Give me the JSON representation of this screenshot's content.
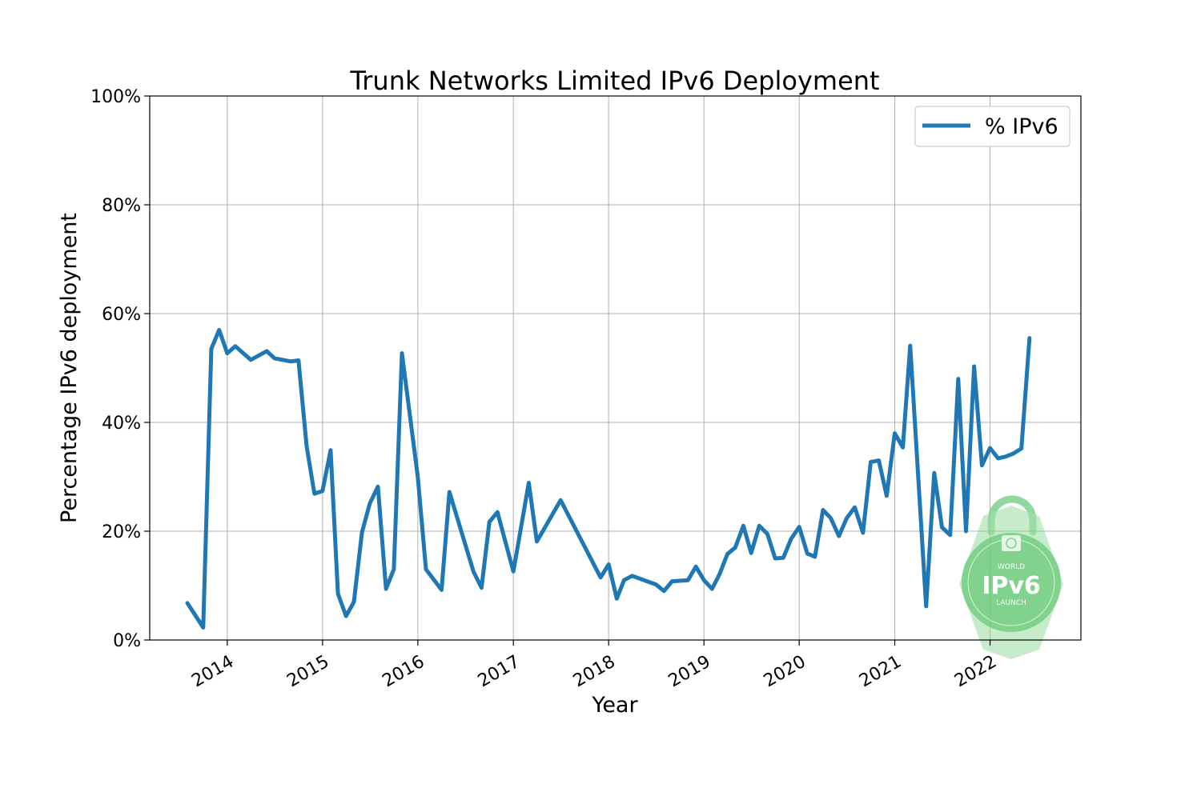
{
  "chart_data": {
    "type": "line",
    "title": "Trunk Networks Limited IPv6 Deployment",
    "xlabel": "Year",
    "ylabel": "Percentage IPv6 deployment",
    "x_ticks": [
      "2014",
      "2015",
      "2016",
      "2017",
      "2018",
      "2019",
      "2020",
      "2021",
      "2022"
    ],
    "y_ticks": [
      "0%",
      "20%",
      "40%",
      "60%",
      "80%",
      "100%"
    ],
    "xlim": [
      "2013-03-10",
      "2022-12-15"
    ],
    "ylim": [
      0,
      100
    ],
    "grid": true,
    "legend_position": "top-right",
    "series": [
      {
        "name": "% IPv6",
        "color": "#1f77b4",
        "points": [
          [
            "2013-08-01",
            6.8
          ],
          [
            "2013-10-01",
            2.3
          ],
          [
            "2013-11-01",
            53.5
          ],
          [
            "2013-12-01",
            57.0
          ],
          [
            "2014-01-01",
            52.7
          ],
          [
            "2014-02-01",
            54.0
          ],
          [
            "2014-04-01",
            51.5
          ],
          [
            "2014-06-01",
            53.1
          ],
          [
            "2014-07-01",
            51.8
          ],
          [
            "2014-09-01",
            51.2
          ],
          [
            "2014-10-01",
            51.4
          ],
          [
            "2014-11-01",
            35.6
          ],
          [
            "2014-12-01",
            26.9
          ],
          [
            "2015-01-01",
            27.4
          ],
          [
            "2015-02-01",
            34.9
          ],
          [
            "2015-03-01",
            8.5
          ],
          [
            "2015-04-01",
            4.4
          ],
          [
            "2015-05-01",
            7.0
          ],
          [
            "2015-06-01",
            19.8
          ],
          [
            "2015-07-01",
            25.1
          ],
          [
            "2015-08-01",
            28.2
          ],
          [
            "2015-09-01",
            9.4
          ],
          [
            "2015-10-01",
            13.0
          ],
          [
            "2015-11-01",
            52.7
          ],
          [
            "2016-01-01",
            30.0
          ],
          [
            "2016-02-01",
            13.0
          ],
          [
            "2016-04-01",
            9.2
          ],
          [
            "2016-05-01",
            27.2
          ],
          [
            "2016-08-01",
            12.6
          ],
          [
            "2016-09-01",
            9.6
          ],
          [
            "2016-10-01",
            21.7
          ],
          [
            "2016-11-01",
            23.5
          ],
          [
            "2017-01-01",
            12.6
          ],
          [
            "2017-03-01",
            28.9
          ],
          [
            "2017-04-01",
            18.1
          ],
          [
            "2017-07-01",
            25.7
          ],
          [
            "2017-12-01",
            11.5
          ],
          [
            "2018-01-01",
            13.9
          ],
          [
            "2018-02-01",
            7.6
          ],
          [
            "2018-03-01",
            11.0
          ],
          [
            "2018-04-01",
            11.8
          ],
          [
            "2018-07-01",
            10.2
          ],
          [
            "2018-08-01",
            9.0
          ],
          [
            "2018-09-01",
            10.8
          ],
          [
            "2018-11-01",
            11.0
          ],
          [
            "2018-12-01",
            13.5
          ],
          [
            "2019-01-01",
            11.0
          ],
          [
            "2019-02-01",
            9.4
          ],
          [
            "2019-03-01",
            12.0
          ],
          [
            "2019-04-01",
            15.8
          ],
          [
            "2019-05-01",
            17.0
          ],
          [
            "2019-06-01",
            21.0
          ],
          [
            "2019-07-01",
            16.0
          ],
          [
            "2019-08-01",
            21.0
          ],
          [
            "2019-09-01",
            19.5
          ],
          [
            "2019-10-01",
            15.0
          ],
          [
            "2019-11-01",
            15.1
          ],
          [
            "2019-12-01",
            18.6
          ],
          [
            "2020-01-01",
            20.8
          ],
          [
            "2020-02-01",
            15.9
          ],
          [
            "2020-03-01",
            15.3
          ],
          [
            "2020-04-01",
            23.9
          ],
          [
            "2020-05-01",
            22.4
          ],
          [
            "2020-06-01",
            19.1
          ],
          [
            "2020-07-01",
            22.4
          ],
          [
            "2020-08-01",
            24.4
          ],
          [
            "2020-09-01",
            19.7
          ],
          [
            "2020-10-01",
            32.7
          ],
          [
            "2020-11-01",
            33.0
          ],
          [
            "2020-12-01",
            26.5
          ],
          [
            "2021-01-01",
            38.0
          ],
          [
            "2021-02-01",
            35.4
          ],
          [
            "2021-03-01",
            54.1
          ],
          [
            "2021-05-01",
            6.2
          ],
          [
            "2021-06-01",
            30.7
          ],
          [
            "2021-07-01",
            20.7
          ],
          [
            "2021-08-01",
            19.3
          ],
          [
            "2021-09-01",
            48.0
          ],
          [
            "2021-10-01",
            20.0
          ],
          [
            "2021-11-01",
            50.3
          ],
          [
            "2021-12-01",
            32.1
          ],
          [
            "2022-01-01",
            35.3
          ],
          [
            "2022-02-01",
            33.4
          ],
          [
            "2022-03-01",
            33.7
          ],
          [
            "2022-04-01",
            34.3
          ],
          [
            "2022-05-01",
            35.2
          ],
          [
            "2022-06-01",
            55.5
          ]
        ]
      }
    ]
  },
  "watermark": {
    "icon": "world-ipv6-launch-logo",
    "text_top": "WORLD",
    "text_main": "IPv6",
    "text_bottom": "LAUNCH",
    "color": "#5ac46b"
  }
}
